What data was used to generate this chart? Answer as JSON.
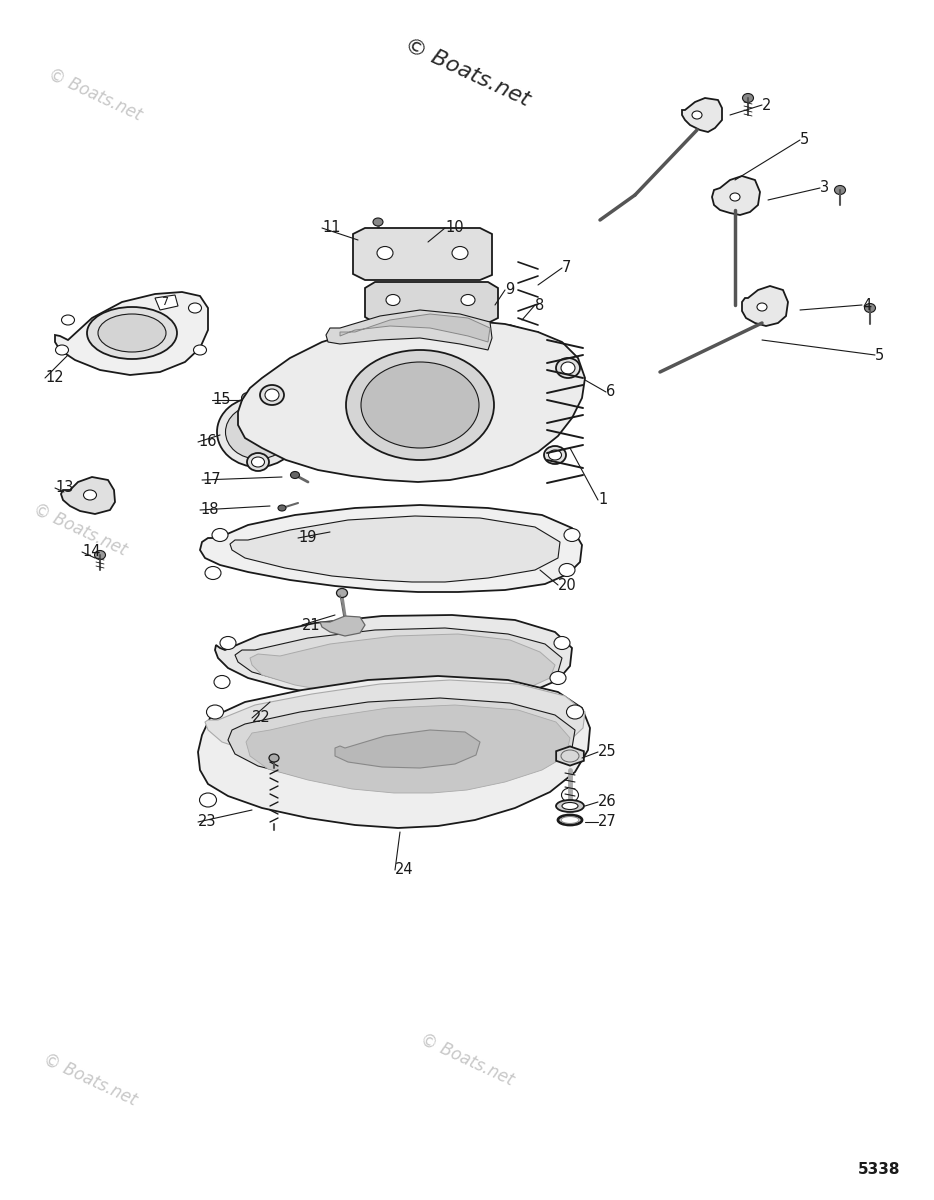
{
  "bg_color": "#ffffff",
  "watermark_text": "© Boats.net",
  "watermark_color": "#c8c8c8",
  "diagram_id": "5338",
  "line_color": "#1a1a1a",
  "label_fontsize": 10.5,
  "watermark_fontsize": 14
}
